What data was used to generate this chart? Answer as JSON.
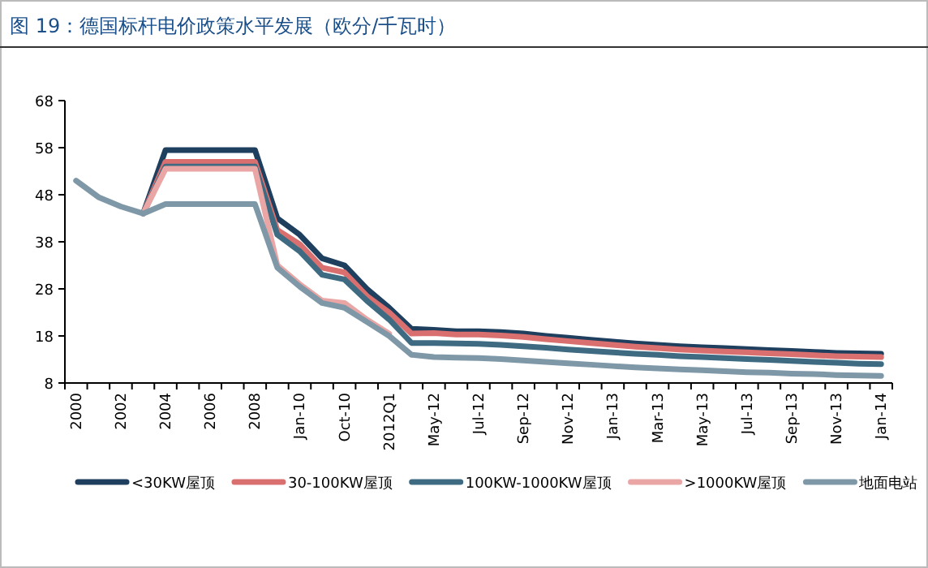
{
  "chart_data": {
    "type": "line",
    "title": "图 19：德国标杆电价政策水平发展（欧分/千瓦时）",
    "categories": [
      "2000",
      null,
      "2002",
      null,
      "2004",
      null,
      "2006",
      null,
      "2008",
      null,
      "Jan-10",
      null,
      "Oct-10",
      null,
      "2012Q1",
      null,
      "May-12",
      null,
      "Jul-12",
      null,
      "Sep-12",
      null,
      "Nov-12",
      null,
      "Jan-13",
      null,
      "Mar-13",
      null,
      "May-13",
      null,
      "Jul-13",
      null,
      "Sep-13",
      null,
      "Nov-13",
      null,
      "Jan-14"
    ],
    "series": [
      {
        "name": "<30KW屋顶",
        "color": "#1f3f5f",
        "values": [
          null,
          null,
          null,
          44,
          57.5,
          57.5,
          57.5,
          57.5,
          57.5,
          43,
          39.5,
          34.5,
          33,
          28,
          24,
          19.5,
          19.3,
          19,
          19,
          18.8,
          18.5,
          18,
          17.6,
          17.2,
          16.8,
          16.4,
          16.1,
          15.8,
          15.6,
          15.4,
          15.2,
          15,
          14.8,
          14.6,
          14.4,
          14.3,
          14.2
        ]
      },
      {
        "name": "30-100KW屋顶",
        "color": "#d9706f",
        "values": [
          null,
          null,
          null,
          44,
          55,
          55,
          55,
          55,
          55,
          40.5,
          37.5,
          32.5,
          31.5,
          26.5,
          23,
          18.5,
          18.6,
          18.3,
          18.3,
          18.1,
          17.8,
          17.3,
          16.9,
          16.5,
          16.1,
          15.7,
          15.4,
          15.1,
          14.9,
          14.7,
          14.5,
          14.3,
          14.1,
          13.9,
          13.7,
          13.6,
          13.5
        ]
      },
      {
        "name": "100KW-1000KW屋顶",
        "color": "#3e6b82",
        "values": [
          null,
          null,
          null,
          44,
          54,
          54,
          54,
          54,
          54,
          39.5,
          36,
          31,
          30,
          25.5,
          21.5,
          16.5,
          16.5,
          16.4,
          16.3,
          16.1,
          15.8,
          15.5,
          15.1,
          14.8,
          14.5,
          14.2,
          14,
          13.7,
          13.5,
          13.3,
          13.1,
          12.9,
          12.7,
          12.5,
          12.3,
          12.1,
          12
        ]
      },
      {
        "name": ">1000KW屋顶",
        "color": "#eaa5a5",
        "values": [
          null,
          null,
          null,
          44,
          53.5,
          53.5,
          53.5,
          53.5,
          53.5,
          33,
          29,
          25.5,
          25,
          21.5,
          18.5,
          null,
          null,
          null,
          null,
          null,
          null,
          null,
          null,
          null,
          null,
          null,
          null,
          null,
          null,
          null,
          null,
          null,
          null,
          null,
          null,
          null,
          null
        ]
      },
      {
        "name": "地面电站",
        "color": "#7f98a8",
        "values": [
          51,
          47.5,
          45.5,
          44,
          46,
          46,
          46,
          46,
          46,
          32.5,
          28.5,
          25,
          24,
          21,
          18,
          14,
          13.5,
          13.4,
          13.3,
          13.1,
          12.8,
          12.5,
          12.2,
          11.9,
          11.6,
          11.3,
          11.1,
          10.9,
          10.7,
          10.5,
          10.3,
          10.2,
          10,
          9.9,
          9.7,
          9.6,
          9.5
        ]
      }
    ],
    "ylim": [
      8,
      68
    ],
    "yticks": [
      8,
      18,
      28,
      38,
      48,
      58,
      68
    ],
    "grid": false,
    "legend": "bottom",
    "marker": "none",
    "line_style": "solid"
  }
}
